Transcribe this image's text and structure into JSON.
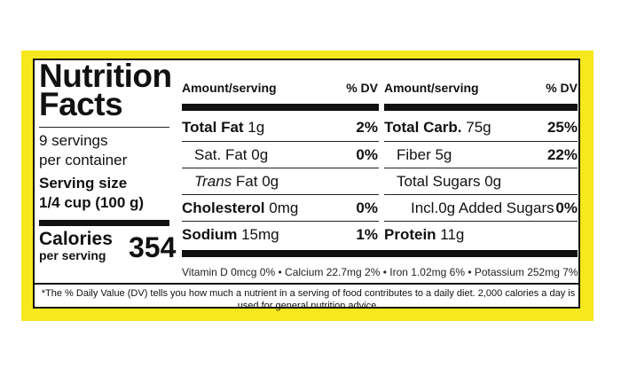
{
  "title": [
    "Nutrition",
    "Facts"
  ],
  "servings": [
    "9 servings",
    "per container"
  ],
  "serving_size": [
    "Serving size",
    "1/4 cup  (100 g)"
  ],
  "calories": {
    "label_big": "Calories",
    "label_small": "per serving",
    "value": "354"
  },
  "headers": {
    "amount": "Amount/serving",
    "dv": "% DV"
  },
  "left_rows": [
    {
      "name": "Total Fat",
      "amount": " 1g",
      "pct": "2%"
    },
    {
      "name": "Sat. Fat",
      "amount": " 0g",
      "pct": "0%"
    },
    {
      "name": "Trans",
      "amount": " Fat  0g",
      "pct": ""
    },
    {
      "name": "Cholesterol",
      "amount": " 0mg",
      "pct": "0%"
    },
    {
      "name": "Sodium",
      "amount": " 15mg",
      "pct": "1%"
    }
  ],
  "right_rows": [
    {
      "name": "Total Carb.",
      "amount": " 75g",
      "pct": "25%"
    },
    {
      "name": "Fiber",
      "amount": " 5g",
      "pct": "22%"
    },
    {
      "name": "Total Sugars",
      "amount": " 0g",
      "pct": ""
    },
    {
      "name": "Incl.",
      "amount": "0g Added Sugars",
      "pct": "0%"
    },
    {
      "name": "Protein",
      "amount": " 11g",
      "pct": ""
    }
  ],
  "vitamins": "Vitamin D 0mcg 0% • Calcium 22.7mg 2% • Iron 1.02mg 6% • Potassium 252mg  7%",
  "footnote": "*The % Daily Value (DV) tells you how much a nutrient in a serving of food contributes to a daily diet. 2,000 calories a day is used for general nutrition advice.",
  "colors": {
    "frame": "#f7e81d",
    "text": "#111111"
  }
}
